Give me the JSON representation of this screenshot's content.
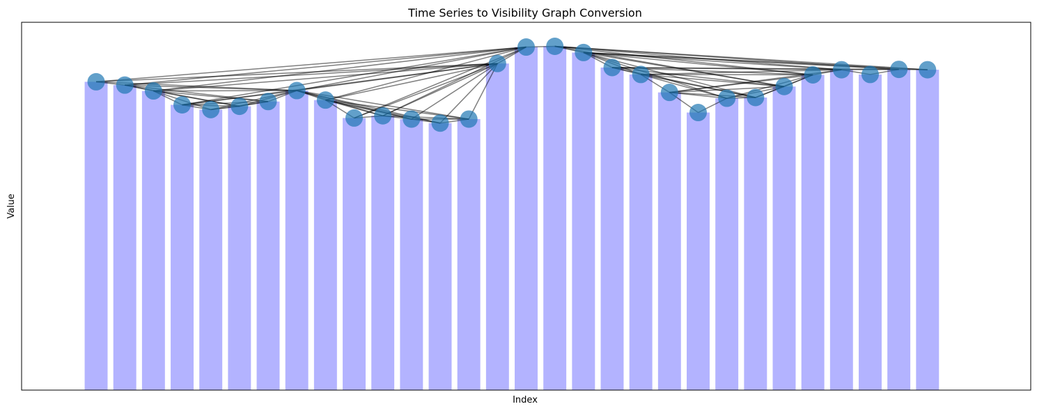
{
  "chart_data": {
    "type": "bar",
    "title": "Time Series to Visibility Graph Conversion",
    "xlabel": "Index",
    "ylabel": "Value",
    "x": [
      0,
      1,
      2,
      3,
      4,
      5,
      6,
      7,
      8,
      9,
      10,
      11,
      12,
      13,
      14,
      15,
      16,
      17,
      18,
      19,
      20,
      21,
      22,
      23,
      24,
      25,
      26,
      27,
      28,
      29
    ],
    "values": [
      0.843,
      0.834,
      0.818,
      0.78,
      0.767,
      0.776,
      0.789,
      0.819,
      0.793,
      0.744,
      0.75,
      0.741,
      0.73,
      0.741,
      0.893,
      0.938,
      0.94,
      0.923,
      0.882,
      0.863,
      0.814,
      0.759,
      0.798,
      0.8,
      0.83,
      0.862,
      0.876,
      0.863,
      0.877,
      0.876
    ],
    "ylim": [
      0,
      1.0
    ],
    "grid": false,
    "ticks_visible": false,
    "bar_color": "#b3b3ff",
    "node_color": "#1f77b4",
    "edge_color": "#000000"
  }
}
